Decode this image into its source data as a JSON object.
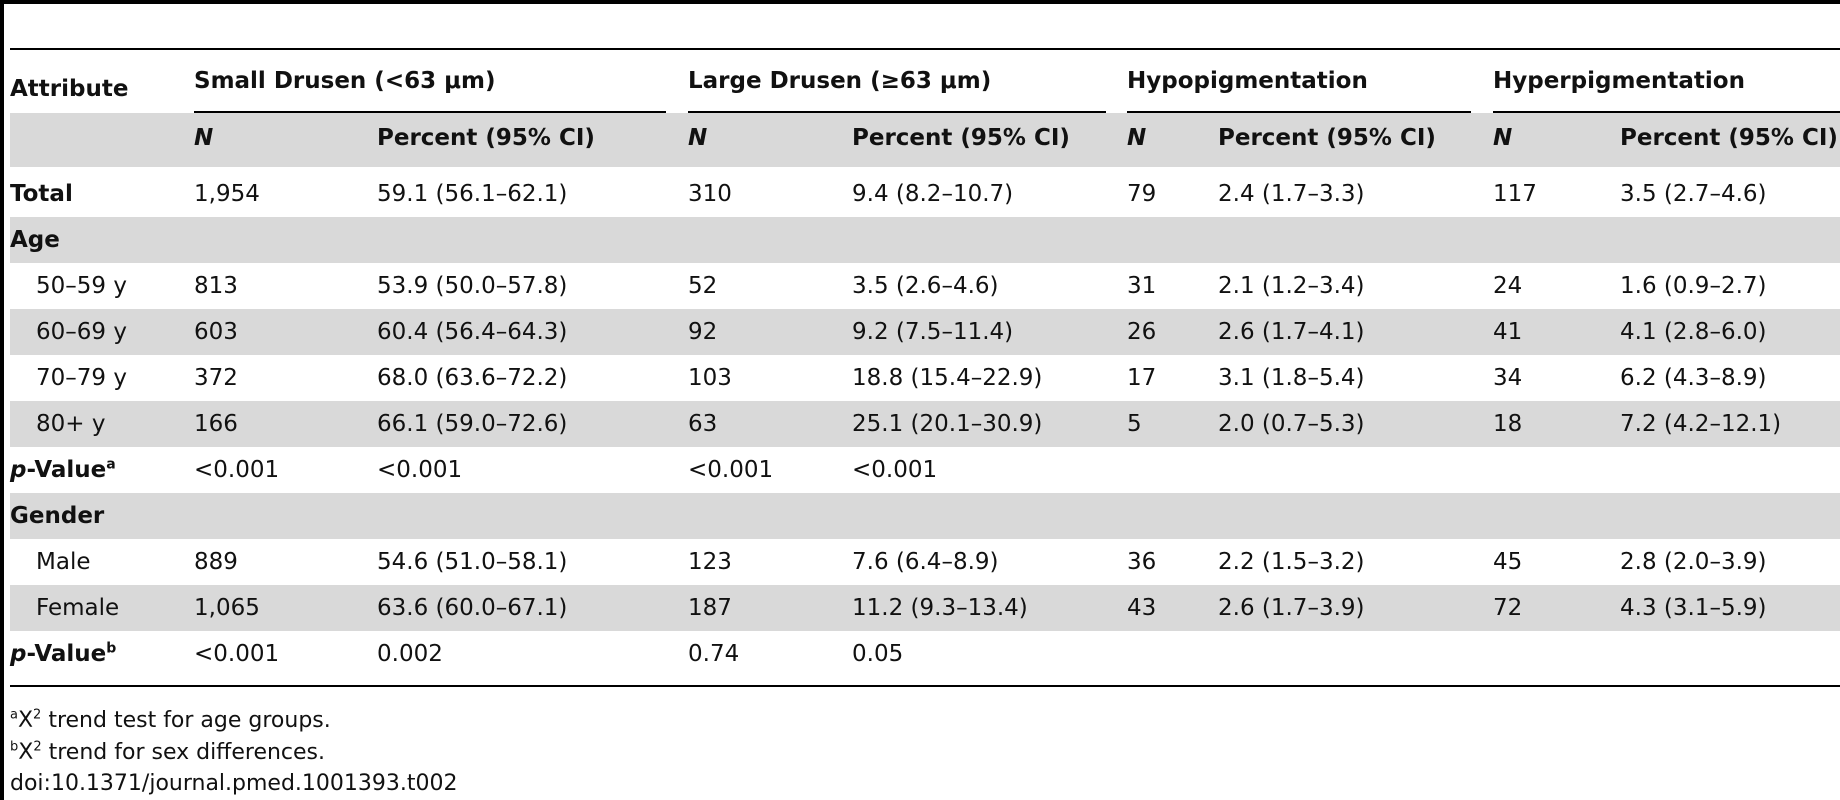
{
  "table": {
    "attribute_header": "Attribute",
    "groups": [
      {
        "label": "Small Drusen (<63 μm)"
      },
      {
        "label": "Large Drusen (≥63 μm)"
      },
      {
        "label": "Hypopigmentation"
      },
      {
        "label": "Hyperpigmentation"
      }
    ],
    "subheaders": [
      "N",
      "Percent (95% CI)",
      "N",
      "Percent (95% CI)",
      "N",
      "Percent (95% CI)",
      "N",
      "Percent (95% CI)"
    ],
    "rows": [
      {
        "label": "Total",
        "cells": [
          "1,954",
          "59.1 (56.1–62.1)",
          "310",
          "9.4 (8.2–10.7)",
          "79",
          "2.4 (1.7–3.3)",
          "117",
          "3.5 (2.7–4.6)"
        ]
      },
      {
        "label": "Age",
        "cells": [
          "",
          "",
          "",
          "",
          "",
          "",
          "",
          ""
        ]
      },
      {
        "label": "50–59 y",
        "cells": [
          "813",
          "53.9 (50.0–57.8)",
          "52",
          "3.5 (2.6–4.6)",
          "31",
          "2.1 (1.2–3.4)",
          "24",
          "1.6 (0.9–2.7)"
        ]
      },
      {
        "label": "60–69 y",
        "cells": [
          "603",
          "60.4 (56.4–64.3)",
          "92",
          "9.2 (7.5–11.4)",
          "26",
          "2.6 (1.7–4.1)",
          "41",
          "4.1 (2.8–6.0)"
        ]
      },
      {
        "label": "70–79 y",
        "cells": [
          "372",
          "68.0 (63.6–72.2)",
          "103",
          "18.8 (15.4–22.9)",
          "17",
          "3.1 (1.8–5.4)",
          "34",
          "6.2 (4.3–8.9)"
        ]
      },
      {
        "label": "80+ y",
        "cells": [
          "166",
          "66.1 (59.0–72.6)",
          "63",
          "25.1 (20.1–30.9)",
          "5",
          "2.0 (0.7–5.3)",
          "18",
          "7.2 (4.2–12.1)"
        ]
      },
      {
        "label": "p-Value",
        "label_p": "p",
        "label_rest": "-Value",
        "sup": "a",
        "cells": [
          "<0.001",
          "<0.001",
          "<0.001",
          "<0.001",
          "",
          "",
          "",
          ""
        ]
      },
      {
        "label": "Gender",
        "cells": [
          "",
          "",
          "",
          "",
          "",
          "",
          "",
          ""
        ]
      },
      {
        "label": "Male",
        "cells": [
          "889",
          "54.6 (51.0–58.1)",
          "123",
          "7.6 (6.4–8.9)",
          "36",
          "2.2 (1.5–3.2)",
          "45",
          "2.8 (2.0–3.9)"
        ]
      },
      {
        "label": "Female",
        "cells": [
          "1,065",
          "63.6 (60.0–67.1)",
          "187",
          "11.2 (9.3–13.4)",
          "43",
          "2.6 (1.7–3.9)",
          "72",
          "4.3 (3.1–5.9)"
        ]
      },
      {
        "label": "p-Value",
        "label_p": "p",
        "label_rest": "-Value",
        "sup": "b",
        "cells": [
          "<0.001",
          "0.002",
          "0.74",
          "0.05",
          "",
          "",
          "",
          ""
        ]
      }
    ]
  },
  "footnotes": [
    {
      "mark": "a",
      "chi": "Χ",
      "sq": "2",
      "text": " trend test for age groups."
    },
    {
      "mark": "b",
      "chi": "Χ",
      "sq": "2",
      "text": " trend for sex differences."
    }
  ],
  "doi": "doi:10.1371/journal.pmed.1001393.t002"
}
